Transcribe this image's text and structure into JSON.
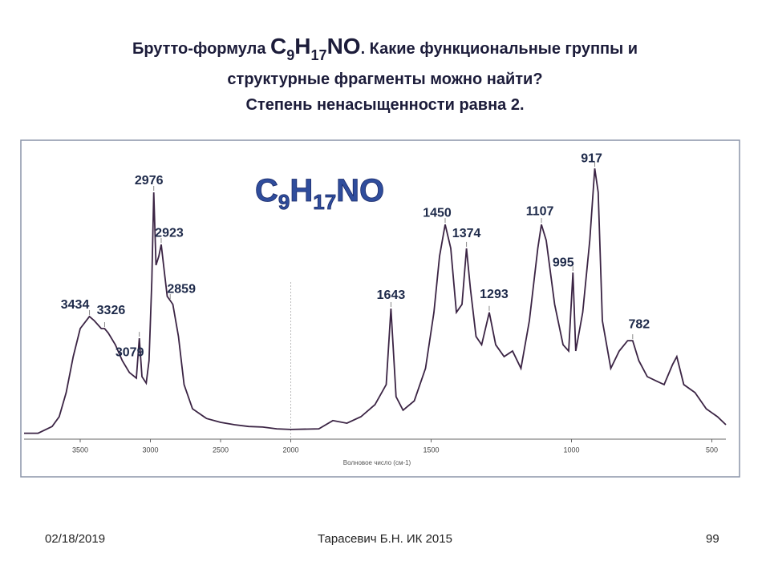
{
  "slide": {
    "title": {
      "prefix": "Брутто-формула ",
      "formula": [
        "C",
        "9",
        "H",
        "17",
        "NO"
      ],
      "line1_end": ". Какие функциональные группы и",
      "line2": "структурные фрагменты можно найти?",
      "line3": "Степень ненасыщенности равна 2."
    },
    "footer": {
      "date": "02/18/2019",
      "author": "Тарасевич Б.Н. ИК 2015",
      "page": "99"
    }
  },
  "chart_data": {
    "type": "line",
    "formula": [
      "C",
      "9",
      "H",
      "17",
      "NO"
    ],
    "x_label": "Волновое число (см-1)",
    "color": "#3b2444",
    "x": [
      3900,
      3800,
      3700,
      3650,
      3600,
      3550,
      3500,
      3434,
      3400,
      3350,
      3326,
      3300,
      3250,
      3200,
      3150,
      3100,
      3079,
      3060,
      3030,
      3010,
      2990,
      2976,
      2960,
      2940,
      2923,
      2900,
      2880,
      2859,
      2840,
      2800,
      2760,
      2700,
      2600,
      2500,
      2400,
      2300,
      2200,
      2100,
      2000,
      1900,
      1850,
      1800,
      1750,
      1700,
      1660,
      1643,
      1625,
      1600,
      1560,
      1520,
      1490,
      1470,
      1450,
      1430,
      1410,
      1390,
      1374,
      1360,
      1340,
      1320,
      1293,
      1270,
      1240,
      1210,
      1180,
      1150,
      1120,
      1107,
      1090,
      1060,
      1030,
      1010,
      995,
      985,
      960,
      935,
      917,
      905,
      890,
      860,
      830,
      800,
      782,
      760,
      730,
      700,
      670,
      640,
      625,
      600,
      560,
      520,
      480,
      450
    ],
    "values": [
      2,
      2,
      4.3,
      7.6,
      15.8,
      28,
      37.5,
      41.6,
      40.2,
      37.5,
      37.5,
      36,
      32,
      26.6,
      22.6,
      20.7,
      34.2,
      21.2,
      19,
      26.6,
      53.8,
      83.7,
      59,
      62,
      66,
      56.5,
      48.4,
      47,
      45.7,
      34.8,
      18.5,
      10.3,
      7,
      5.7,
      4.9,
      4.3,
      4.1,
      3.5,
      3.3,
      3.5,
      6.3,
      5.4,
      7.6,
      11.7,
      18.5,
      44.3,
      14.4,
      9.8,
      13,
      24,
      43,
      62,
      72.8,
      64.7,
      43,
      45.7,
      64.7,
      51,
      34.8,
      32,
      43,
      32,
      28,
      29.9,
      24,
      40.2,
      64.7,
      72.8,
      67.4,
      45.7,
      32,
      29.9,
      56.5,
      29.9,
      43,
      67.4,
      91.8,
      83.7,
      40.2,
      24,
      29.9,
      33.4,
      33.4,
      26.6,
      21.2,
      19.8,
      18.5,
      25.3,
      28,
      18.5,
      15.8,
      10.3,
      7.6,
      4.9
    ],
    "xlim": [
      3900,
      450
    ],
    "xticks": [
      3500,
      3000,
      2500,
      2000,
      1500,
      1000,
      500
    ],
    "x_scale_break": 2000,
    "x_scale_ratio": 2,
    "ylim": [
      0,
      100
    ],
    "peaks": [
      3434,
      3326,
      3079,
      2976,
      2923,
      2859,
      1643,
      1450,
      1374,
      1293,
      1107,
      995,
      917,
      782
    ]
  }
}
